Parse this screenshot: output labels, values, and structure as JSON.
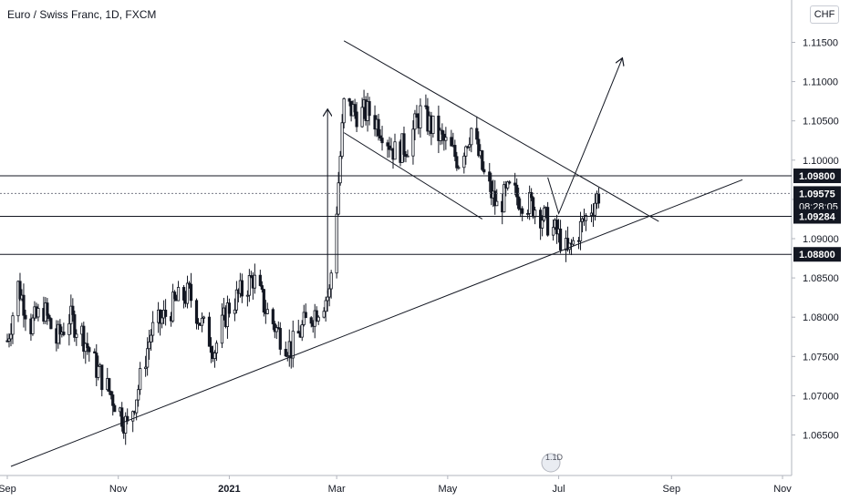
{
  "chart_data": {
    "type": "candlestick",
    "title": "Euro / Swiss Franc, 1D, FXCM",
    "currency": "CHF",
    "ylim": [
      1.061,
      1.119
    ],
    "y_ticks": [
      "1.06500",
      "1.07000",
      "1.07500",
      "1.08000",
      "1.08500",
      "1.09000",
      "1.09500",
      "1.10000",
      "1.10500",
      "1.11000",
      "1.11500"
    ],
    "x_ticks": [
      {
        "label": "Sep",
        "date": "2020-09-01",
        "bold": false
      },
      {
        "label": "Nov",
        "date": "2020-11-01",
        "bold": false
      },
      {
        "label": "2021",
        "date": "2021-01-01",
        "bold": true
      },
      {
        "label": "Mar",
        "date": "2021-03-01",
        "bold": false
      },
      {
        "label": "May",
        "date": "2021-05-01",
        "bold": false
      },
      {
        "label": "Jul",
        "date": "2021-07-01",
        "bold": false
      },
      {
        "label": "Sep",
        "date": "2021-09-01",
        "bold": false
      },
      {
        "label": "Nov",
        "date": "2021-11-01",
        "bold": false
      }
    ],
    "xlim": [
      "2020-09-01",
      "2021-11-01"
    ],
    "horizontal_levels": [
      {
        "value": 1.098,
        "label": "1.09800",
        "style": "solid",
        "box": "black"
      },
      {
        "value": 1.09575,
        "label": "1.09575",
        "style": "dotted",
        "box": "black",
        "sublabel": "08:28:05"
      },
      {
        "value": 1.09284,
        "label": "1.09284",
        "style": "solid",
        "box": "black"
      },
      {
        "value": 1.088,
        "label": "1.08800",
        "style": "solid",
        "box": "black"
      }
    ],
    "path": [
      [
        "2020-09-01",
        1.077
      ],
      [
        "2020-09-07",
        1.084
      ],
      [
        "2020-09-14",
        1.079
      ],
      [
        "2020-09-21",
        1.081
      ],
      [
        "2020-09-28",
        1.077
      ],
      [
        "2020-10-05",
        1.08
      ],
      [
        "2020-10-12",
        1.078
      ],
      [
        "2020-10-19",
        1.074
      ],
      [
        "2020-10-26",
        1.071
      ],
      [
        "2020-11-02",
        1.068
      ],
      [
        "2020-11-06",
        1.066
      ],
      [
        "2020-11-12",
        1.071
      ],
      [
        "2020-11-19",
        1.078
      ],
      [
        "2020-11-26",
        1.08
      ],
      [
        "2020-12-03",
        1.082
      ],
      [
        "2020-12-10",
        1.083
      ],
      [
        "2020-12-17",
        1.079
      ],
      [
        "2020-12-24",
        1.076
      ],
      [
        "2020-12-31",
        1.081
      ],
      [
        "2021-01-07",
        1.083
      ],
      [
        "2021-01-14",
        1.085
      ],
      [
        "2021-01-21",
        1.081
      ],
      [
        "2021-01-28",
        1.078
      ],
      [
        "2021-02-04",
        1.076
      ],
      [
        "2021-02-11",
        1.079
      ],
      [
        "2021-02-18",
        1.081
      ],
      [
        "2021-02-25",
        1.083
      ],
      [
        "2021-03-01",
        1.094
      ],
      [
        "2021-03-05",
        1.107
      ],
      [
        "2021-03-12",
        1.106
      ],
      [
        "2021-03-19",
        1.106
      ],
      [
        "2021-03-26",
        1.104
      ],
      [
        "2021-04-02",
        1.101
      ],
      [
        "2021-04-09",
        1.102
      ],
      [
        "2021-04-16",
        1.106
      ],
      [
        "2021-04-23",
        1.104
      ],
      [
        "2021-04-30",
        1.102
      ],
      [
        "2021-05-07",
        1.1
      ],
      [
        "2021-05-14",
        1.104
      ],
      [
        "2021-05-21",
        1.098
      ],
      [
        "2021-05-28",
        1.094
      ],
      [
        "2021-06-04",
        1.096
      ],
      [
        "2021-06-11",
        1.095
      ],
      [
        "2021-06-18",
        1.094
      ],
      [
        "2021-06-25",
        1.092
      ],
      [
        "2021-07-02",
        1.09
      ],
      [
        "2021-07-06",
        1.088
      ],
      [
        "2021-07-12",
        1.091
      ],
      [
        "2021-07-19",
        1.094
      ],
      [
        "2021-07-23",
        1.0957
      ]
    ],
    "drawings": [
      {
        "kind": "trendline",
        "from": [
          "2020-09-03",
          1.061
        ],
        "to": [
          "2021-10-10",
          1.0975
        ]
      },
      {
        "kind": "trendline",
        "from": [
          "2021-03-05",
          1.1152
        ],
        "to": [
          "2021-08-25",
          1.0922
        ]
      },
      {
        "kind": "trendline",
        "from": [
          "2021-03-05",
          1.1035
        ],
        "to": [
          "2021-05-20",
          1.0925
        ]
      },
      {
        "kind": "arrow",
        "from": [
          "2021-02-24",
          1.083
        ],
        "to": [
          "2021-02-24",
          1.1065
        ]
      },
      {
        "kind": "polyline",
        "points": [
          [
            "2021-06-25",
            1.0978
          ],
          [
            "2021-07-01",
            1.0932
          ],
          [
            "2021-07-22",
            1.105
          ]
        ]
      },
      {
        "kind": "arrow",
        "from": [
          "2021-07-22",
          1.105
        ],
        "to": [
          "2021-08-05",
          1.113
        ]
      }
    ]
  },
  "watermark": "1.1D"
}
